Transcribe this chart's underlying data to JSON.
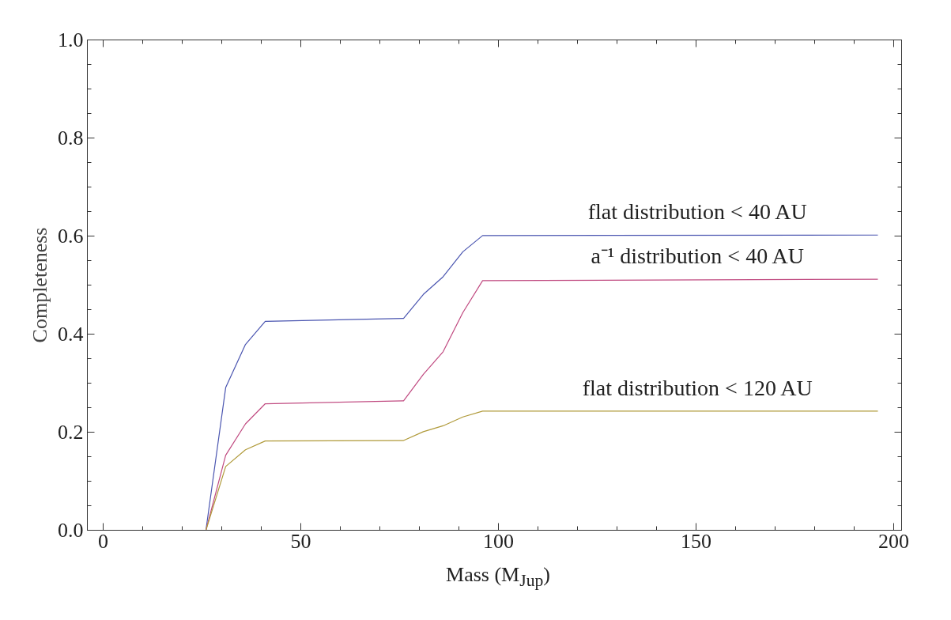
{
  "chart_data": {
    "type": "line",
    "xlabel": "Mass (M$_{Jup}$)",
    "ylabel": "Completeness",
    "x": [
      0,
      26,
      31,
      36,
      41,
      76,
      81,
      86,
      91,
      96,
      196
    ],
    "series": [
      {
        "name": "flat distribution < 40 AU",
        "color": "#4a55b0",
        "values": [
          0,
          0,
          0.291,
          0.379,
          0.426,
          0.432,
          0.481,
          0.517,
          0.568,
          0.601,
          0.602
        ]
      },
      {
        "name": "a⁻¹ distribution < 40 AU",
        "color": "#c04a80",
        "values": [
          0,
          0,
          0.153,
          0.217,
          0.258,
          0.264,
          0.318,
          0.364,
          0.444,
          0.509,
          0.512
        ]
      },
      {
        "name": "flat distribution < 120 AU",
        "color": "#b09a3a",
        "values": [
          0,
          0,
          0.13,
          0.164,
          0.182,
          0.183,
          0.201,
          0.213,
          0.231,
          0.243,
          0.243
        ]
      }
    ],
    "xlim": [
      -4,
      202
    ],
    "ylim": [
      0,
      1
    ],
    "xticks": [
      0,
      50,
      100,
      150,
      200
    ],
    "yticks": [
      {
        "value": 0,
        "label": "0.0"
      },
      {
        "value": 0.2,
        "label": "0.2"
      },
      {
        "value": 0.4,
        "label": "0.4"
      },
      {
        "value": 0.6,
        "label": "0.6"
      },
      {
        "value": 0.8,
        "label": "0.8"
      },
      {
        "value": 1.0,
        "label": "1.0"
      }
    ],
    "grid": false
  }
}
